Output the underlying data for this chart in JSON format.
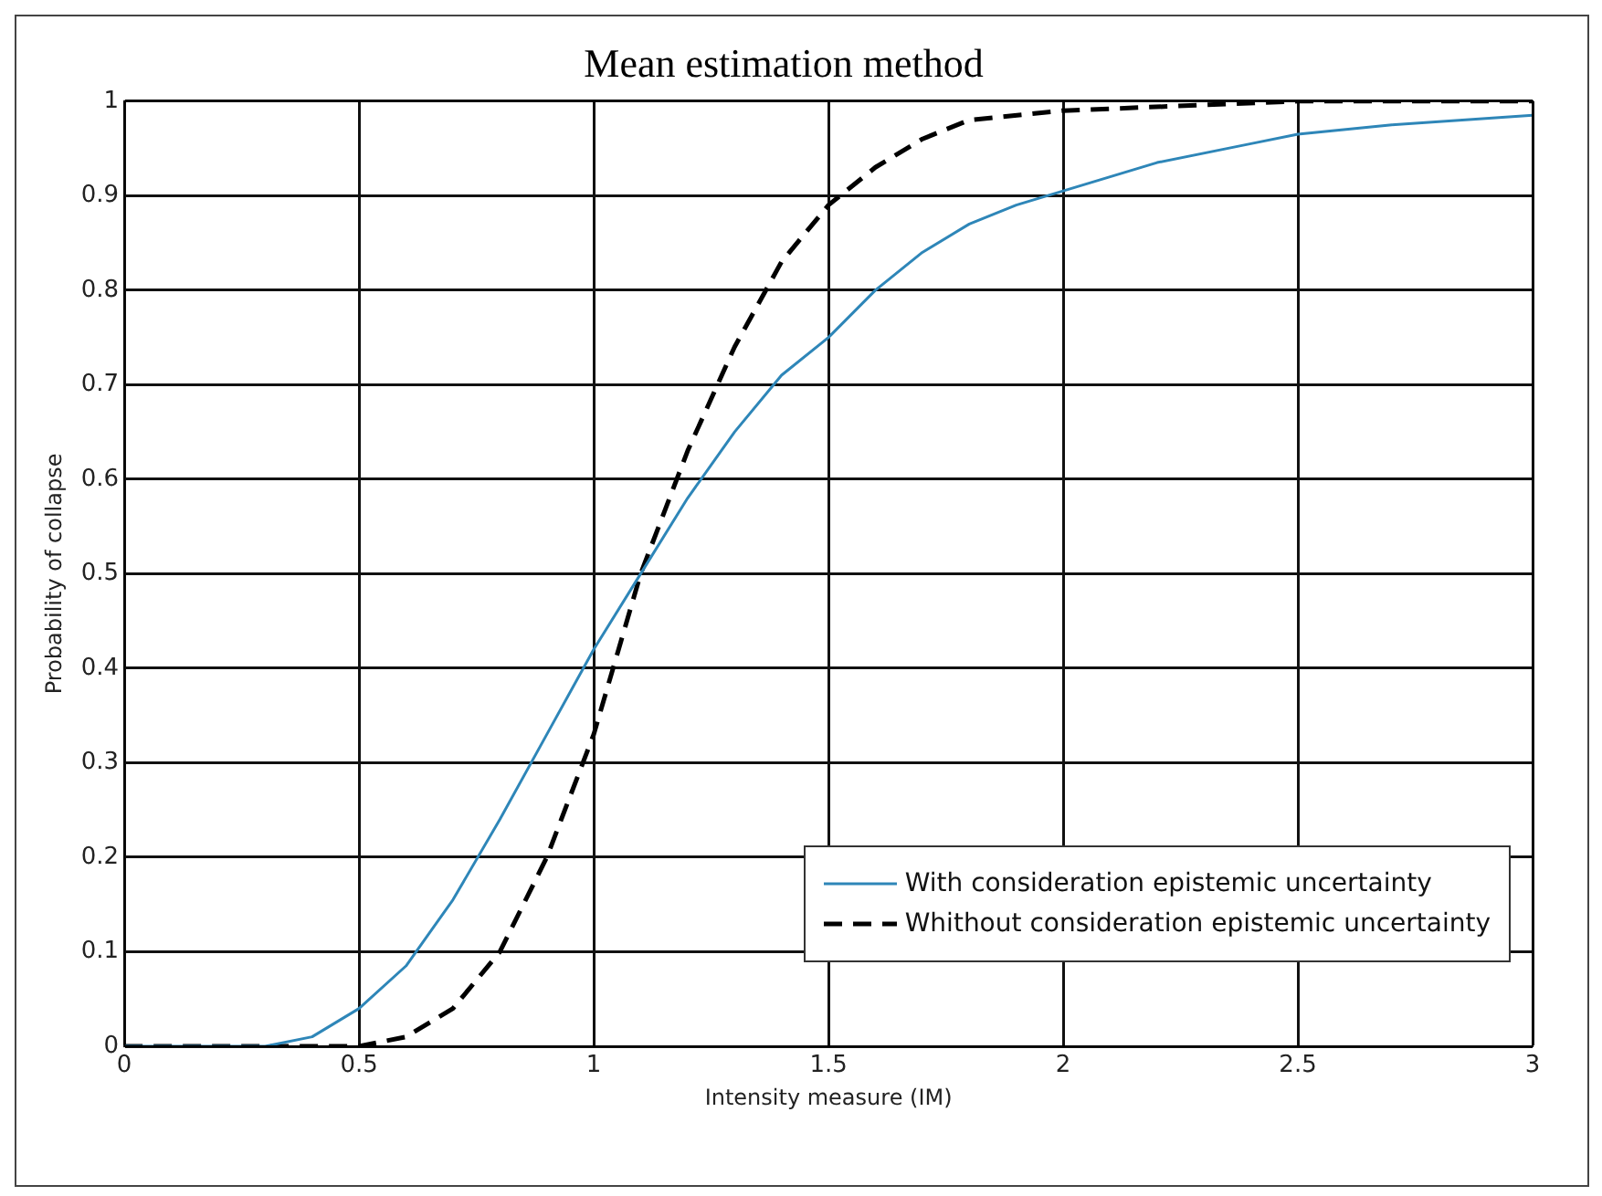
{
  "chart_data": {
    "type": "line",
    "title": "Mean estimation method",
    "xlabel": "Intensity measure (IM)",
    "ylabel": "Probability of collapse",
    "xlim": [
      0,
      3
    ],
    "xticks": [
      0,
      0.5,
      1,
      1.5,
      2,
      2.5,
      3
    ],
    "ylim": [
      0,
      1
    ],
    "yticks": [
      0,
      0.1,
      0.2,
      0.3,
      0.4,
      0.5,
      0.6,
      0.7,
      0.8,
      0.9,
      1
    ],
    "grid": true,
    "legend": "bottom right",
    "marker": "none",
    "series": [
      {
        "name": "With consideration epistemic uncertainty",
        "color": "#2e86b8",
        "line_style": "solid",
        "x": [
          0,
          0.3,
          0.4,
          0.5,
          0.6,
          0.7,
          0.8,
          0.9,
          1,
          1.1,
          1.2,
          1.3,
          1.4,
          1.5,
          1.6,
          1.7,
          1.8,
          1.9,
          2,
          2.2,
          2.4,
          2.5,
          2.7,
          3
        ],
        "values": [
          0,
          0,
          0.01,
          0.04,
          0.085,
          0.155,
          0.24,
          0.33,
          0.42,
          0.5,
          0.58,
          0.65,
          0.71,
          0.75,
          0.8,
          0.84,
          0.87,
          0.89,
          0.905,
          0.935,
          0.955,
          0.965,
          0.975,
          0.985
        ]
      },
      {
        "name": "Whithout consideration epistemic uncertainty",
        "color": "#000000",
        "line_style": "dashed",
        "x": [
          0,
          0.5,
          0.6,
          0.7,
          0.8,
          0.9,
          1,
          1.1,
          1.2,
          1.3,
          1.4,
          1.5,
          1.6,
          1.7,
          1.8,
          2,
          2.5,
          3
        ],
        "values": [
          0,
          0,
          0.01,
          0.04,
          0.1,
          0.2,
          0.33,
          0.5,
          0.63,
          0.74,
          0.83,
          0.89,
          0.93,
          0.96,
          0.98,
          0.99,
          1,
          1
        ]
      }
    ]
  }
}
